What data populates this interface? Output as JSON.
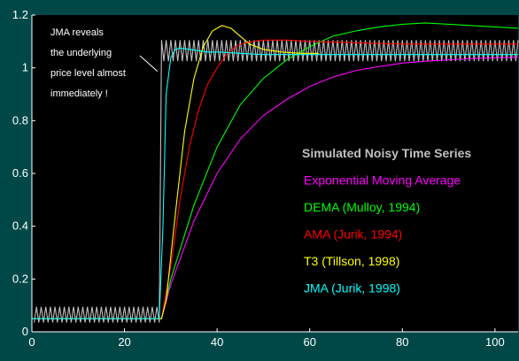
{
  "chart_data": {
    "type": "line",
    "title": "",
    "xlabel": "",
    "ylabel": "",
    "xlim": [
      0,
      105
    ],
    "ylim": [
      0,
      1.2
    ],
    "x_ticks": [
      0,
      20,
      40,
      60,
      80,
      100
    ],
    "y_ticks": [
      0,
      0.2,
      0.4,
      0.6,
      0.8,
      1,
      1.2
    ],
    "grid": false,
    "background_color": "#000000",
    "frame_color": "#004848",
    "legend": {
      "placement": "center-right",
      "entries": [
        {
          "text": "Simulated Noisy Time Series",
          "color": "#c0c0c0"
        },
        {
          "text": "Exponential Moving Average",
          "color": "#ff00ff"
        },
        {
          "text": "DEMA   (Mulloy, 1994)",
          "color": "#00ff00"
        },
        {
          "text": "AMA   (Jurik, 1994)",
          "color": "#ff0000"
        },
        {
          "text": "T3   (Tillson, 1998)",
          "color": "#ffff00"
        },
        {
          "text": "JMA   (Jurik, 1998)",
          "color": "#00ffff"
        }
      ]
    },
    "annotation": {
      "lines": [
        "JMA reveals",
        "the underlying",
        "price level almost",
        "immediately !"
      ],
      "arrow_to": [
        27.5,
        1.0
      ]
    },
    "series": [
      {
        "color": "#c0c0c0",
        "kind": "sawtooth",
        "x_step": 1.0,
        "low_before": 0.035,
        "high_before": 0.095,
        "low_after": 1.025,
        "high_after": 1.105,
        "step_x": 28
      },
      {
        "color": "#ff00ff",
        "x": [
          0,
          28,
          30,
          35,
          40,
          45,
          50,
          55,
          60,
          65,
          70,
          75,
          80,
          85,
          90,
          95,
          100,
          105
        ],
        "y": [
          0.05,
          0.05,
          0.18,
          0.42,
          0.6,
          0.73,
          0.82,
          0.88,
          0.93,
          0.965,
          0.99,
          1.005,
          1.018,
          1.025,
          1.03,
          1.035,
          1.038,
          1.04
        ]
      },
      {
        "color": "#00ff00",
        "x": [
          0,
          28,
          30,
          35,
          40,
          45,
          50,
          55,
          60,
          65,
          70,
          75,
          80,
          85,
          90,
          95,
          100,
          105
        ],
        "y": [
          0.05,
          0.05,
          0.2,
          0.48,
          0.7,
          0.86,
          0.96,
          1.03,
          1.08,
          1.12,
          1.14,
          1.155,
          1.165,
          1.17,
          1.165,
          1.16,
          1.155,
          1.15
        ]
      },
      {
        "color": "#ff0000",
        "x": [
          0,
          28,
          30,
          32,
          34,
          36,
          38,
          40,
          42,
          44,
          46,
          50,
          55,
          60,
          70,
          80,
          90,
          100,
          105
        ],
        "y": [
          0.05,
          0.05,
          0.25,
          0.5,
          0.7,
          0.84,
          0.94,
          1.0,
          1.05,
          1.08,
          1.095,
          1.105,
          1.105,
          1.1,
          1.095,
          1.09,
          1.09,
          1.09,
          1.09
        ]
      },
      {
        "color": "#ffff00",
        "x": [
          0,
          28,
          29,
          31,
          33,
          35,
          37,
          39,
          41,
          43,
          45,
          47,
          50,
          54,
          58,
          62
        ],
        "y": [
          0.05,
          0.05,
          0.12,
          0.45,
          0.76,
          0.96,
          1.08,
          1.14,
          1.16,
          1.15,
          1.12,
          1.09,
          1.07,
          1.06,
          1.055,
          1.055
        ]
      },
      {
        "color": "#00ffff",
        "x": [
          0,
          27.5,
          28.3,
          29,
          30,
          31,
          32,
          34,
          36,
          38,
          40,
          45,
          50,
          60,
          70,
          80,
          90,
          100,
          105
        ],
        "y": [
          0.05,
          0.05,
          0.4,
          0.9,
          1.04,
          1.07,
          1.075,
          1.07,
          1.065,
          1.06,
          1.06,
          1.055,
          1.05,
          1.05,
          1.05,
          1.05,
          1.05,
          1.05,
          1.05
        ]
      }
    ]
  }
}
